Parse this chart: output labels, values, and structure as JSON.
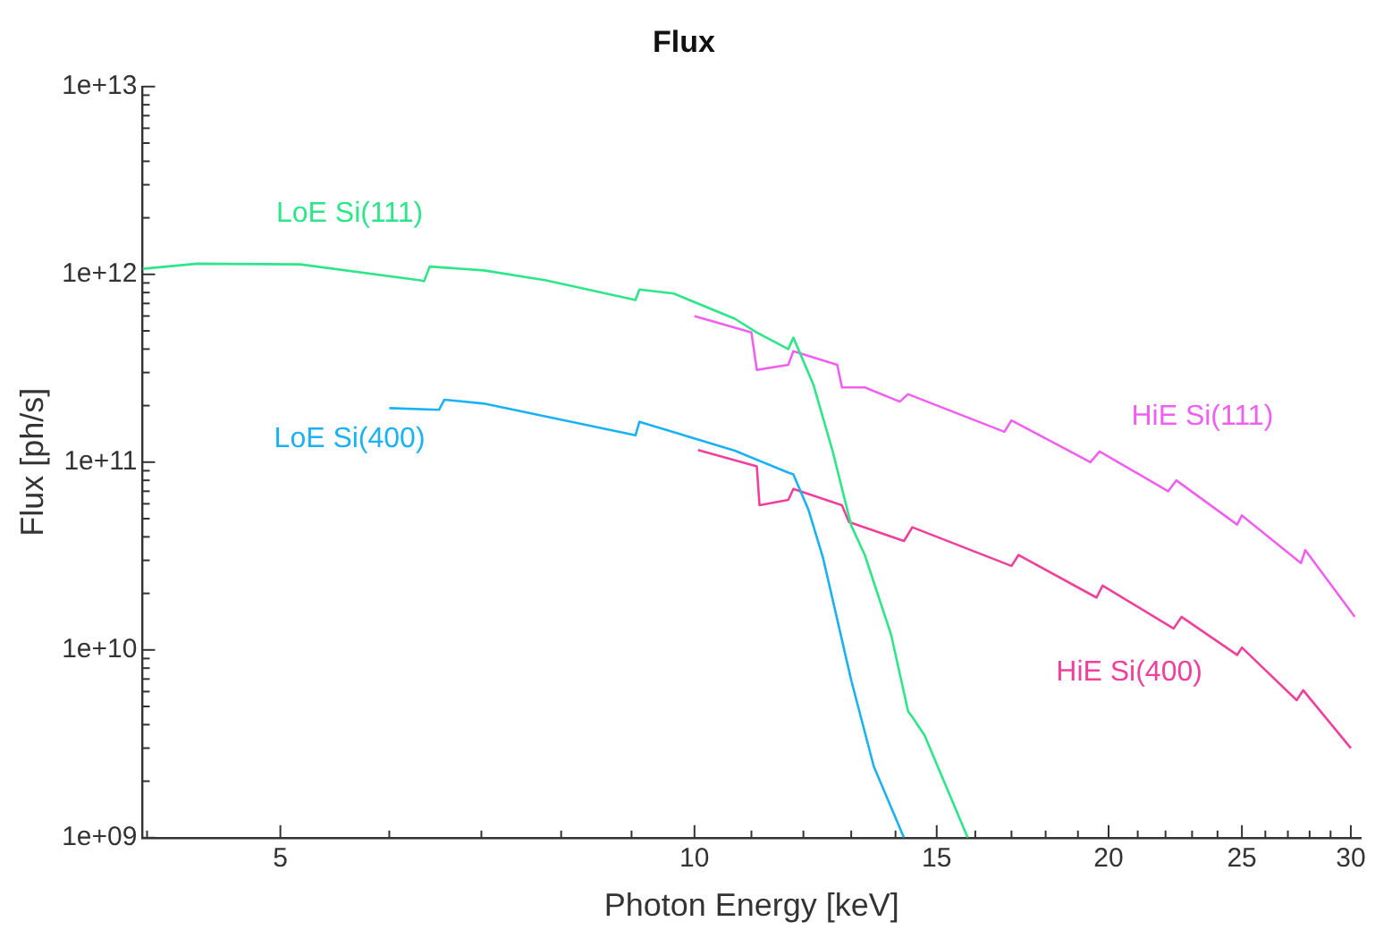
{
  "chart_data": {
    "type": "line",
    "title": "Flux",
    "xlabel": "Photon Energy [keV]",
    "ylabel": "Flux [ph/s]",
    "log": "xy",
    "grid": false,
    "legend": false,
    "marker": "none",
    "line_style": "solid",
    "xlim": [
      3.97,
      30.5
    ],
    "xticks": [
      {
        "value": 4,
        "label": null
      },
      5,
      {
        "value": 6,
        "label": null
      },
      {
        "value": 7,
        "label": null
      },
      {
        "value": 8,
        "label": null
      },
      {
        "value": 9,
        "label": null
      },
      10,
      {
        "value": 11,
        "label": null
      },
      {
        "value": 12,
        "label": null
      },
      {
        "value": 13,
        "label": null
      },
      {
        "value": 14,
        "label": null
      },
      15,
      {
        "value": 16,
        "label": null
      },
      {
        "value": 17,
        "label": null
      },
      {
        "value": 18,
        "label": null
      },
      {
        "value": 19,
        "label": null
      },
      20,
      {
        "value": 21,
        "label": null
      },
      {
        "value": 22,
        "label": null
      },
      {
        "value": 23,
        "label": null
      },
      {
        "value": 24,
        "label": null
      },
      25,
      {
        "value": 26,
        "label": null
      },
      {
        "value": 27,
        "label": null
      },
      {
        "value": 28,
        "label": null
      },
      {
        "value": 29,
        "label": null
      },
      30
    ],
    "ylim": [
      1000000000.0,
      10000000000000.0
    ],
    "yticks": [
      {
        "value": 1000000000.0,
        "label": "1e+09"
      },
      {
        "value": 2000000000.0,
        "label": null
      },
      {
        "value": 3000000000.0,
        "label": null
      },
      {
        "value": 4000000000.0,
        "label": null
      },
      {
        "value": 5000000000.0,
        "label": null
      },
      {
        "value": 6000000000.0,
        "label": null
      },
      {
        "value": 7000000000.0,
        "label": null
      },
      {
        "value": 8000000000.0,
        "label": null
      },
      {
        "value": 9000000000.0,
        "label": null
      },
      {
        "value": 10000000000.0,
        "label": "1e+10"
      },
      {
        "value": 20000000000.0,
        "label": null
      },
      {
        "value": 30000000000.0,
        "label": null
      },
      {
        "value": 40000000000.0,
        "label": null
      },
      {
        "value": 50000000000.0,
        "label": null
      },
      {
        "value": 60000000000.0,
        "label": null
      },
      {
        "value": 70000000000.0,
        "label": null
      },
      {
        "value": 80000000000.0,
        "label": null
      },
      {
        "value": 90000000000.0,
        "label": null
      },
      {
        "value": 100000000000.0,
        "label": "1e+11"
      },
      {
        "value": 200000000000.0,
        "label": null
      },
      {
        "value": 300000000000.0,
        "label": null
      },
      {
        "value": 400000000000.0,
        "label": null
      },
      {
        "value": 500000000000.0,
        "label": null
      },
      {
        "value": 600000000000.0,
        "label": null
      },
      {
        "value": 700000000000.0,
        "label": null
      },
      {
        "value": 800000000000.0,
        "label": null
      },
      {
        "value": 900000000000.0,
        "label": null
      },
      {
        "value": 1000000000000.0,
        "label": "1e+12"
      },
      {
        "value": 2000000000000.0,
        "label": null
      },
      {
        "value": 3000000000000.0,
        "label": null
      },
      {
        "value": 4000000000000.0,
        "label": null
      },
      {
        "value": 5000000000000.0,
        "label": null
      },
      {
        "value": 6000000000000.0,
        "label": null
      },
      {
        "value": 7000000000000.0,
        "label": null
      },
      {
        "value": 8000000000000.0,
        "label": null
      },
      {
        "value": 9000000000000.0,
        "label": null
      },
      {
        "value": 10000000000000.0,
        "label": "1e+13"
      }
    ],
    "series": [
      {
        "name": "LoE Si(111)",
        "color": "#2ee68a",
        "x": [
          3.97,
          4.35,
          5.17,
          6.32,
          6.36,
          6.42,
          7.03,
          7.8,
          9.06,
          9.12,
          9.66,
          10.7,
          11.1,
          11.7,
          11.8,
          12.2,
          12.6,
          13.0,
          13.3,
          13.9,
          14.3,
          14.4,
          14.7,
          15.8
        ],
        "values": [
          1070000000000.0,
          1140000000000.0,
          1130000000000.0,
          930000000000.0,
          920000000000.0,
          1100000000000.0,
          1050000000000.0,
          930000000000.0,
          730000000000.0,
          830000000000.0,
          790000000000.0,
          580000000000.0,
          490000000000.0,
          400000000000.0,
          460000000000.0,
          260000000000.0,
          115000000000.0,
          46000000000.0,
          32000000000.0,
          12000000000.0,
          4700000000.0,
          4400000000.0,
          3500000000.0,
          1000000000.0
        ]
      },
      {
        "name": "LoE Si(400)",
        "color": "#1ab2f2",
        "x": [
          6.0,
          6.52,
          6.58,
          7.03,
          9.06,
          9.12,
          10.7,
          11.7,
          11.8,
          12.1,
          12.4,
          13.0,
          13.5,
          14.2
        ],
        "values": [
          194000000000.0,
          190000000000.0,
          215000000000.0,
          205000000000.0,
          139000000000.0,
          164000000000.0,
          115000000000.0,
          88000000000.0,
          86000000000.0,
          56000000000.0,
          31000000000.0,
          6900000000.0,
          2400000000.0,
          1000000000.0
        ]
      },
      {
        "name": "HiE Si(111)",
        "color": "#f060f0",
        "x": [
          10.0,
          11.0,
          11.1,
          11.7,
          11.8,
          12.7,
          12.8,
          13.3,
          14.1,
          14.3,
          16.8,
          17.0,
          19.4,
          19.7,
          22.1,
          22.4,
          24.8,
          25.0,
          27.6,
          27.8,
          30.2
        ],
        "values": [
          600000000000.0,
          490000000000.0,
          310000000000.0,
          330000000000.0,
          390000000000.0,
          330000000000.0,
          250000000000.0,
          250000000000.0,
          210000000000.0,
          230000000000.0,
          145000000000.0,
          167000000000.0,
          100000000000.0,
          114000000000.0,
          70000000000.0,
          80000000000.0,
          46500000000.0,
          52000000000.0,
          29000000000.0,
          34000000000.0,
          15000000000.0
        ]
      },
      {
        "name": "HiE Si(400)",
        "color": "#f0409c",
        "x": [
          10.06,
          11.1,
          11.15,
          11.7,
          11.8,
          12.8,
          12.95,
          14.2,
          14.4,
          17.0,
          17.2,
          19.6,
          19.8,
          22.3,
          22.6,
          24.8,
          25.0,
          27.4,
          27.7,
          30.0
        ],
        "values": [
          116000000000.0,
          95000000000.0,
          59000000000.0,
          63000000000.0,
          72000000000.0,
          59000000000.0,
          48000000000.0,
          38000000000.0,
          45000000000.0,
          28000000000.0,
          32000000000.0,
          19000000000.0,
          22000000000.0,
          13000000000.0,
          15000000000.0,
          9400000000.0,
          10300000000.0,
          5400000000.0,
          6100000000.0,
          3000000000.0
        ]
      }
    ]
  }
}
